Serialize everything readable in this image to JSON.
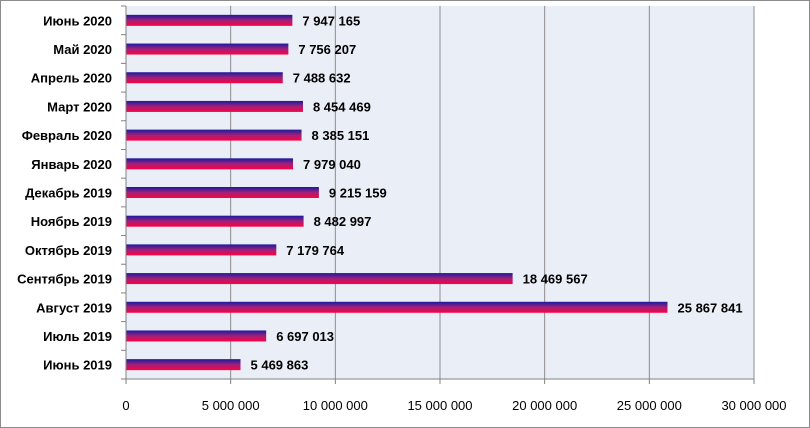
{
  "chart_data": {
    "type": "bar",
    "orientation": "horizontal",
    "categories": [
      "Июнь 2020",
      "Май 2020",
      "Апрель 2020",
      "Март 2020",
      "Февраль 2020",
      "Январь 2020",
      "Декабрь 2019",
      "Ноябрь 2019",
      "Октябрь 2019",
      "Сентябрь 2019",
      "Август 2019",
      "Июль 2019",
      "Июнь 2019"
    ],
    "values": [
      7947165,
      7756207,
      7488632,
      8454469,
      8385151,
      7979040,
      9215159,
      8482997,
      7179764,
      18469567,
      25867841,
      6697013,
      5469863
    ],
    "value_labels": [
      "7 947 165",
      "7 756 207",
      "7 488 632",
      "8 454 469",
      "8 385 151",
      "7 979 040",
      "9 215 159",
      "8 482 997",
      "7 179 764",
      "18 469 567",
      "25 867 841",
      "6 697 013",
      "5 469 863"
    ],
    "xlim": [
      0,
      30000000
    ],
    "x_ticks": [
      0,
      5000000,
      10000000,
      15000000,
      20000000,
      25000000,
      30000000
    ],
    "x_tick_labels": [
      "0",
      "5 000 000",
      "10 000 000",
      "15 000 000",
      "20 000 000",
      "25 000 000",
      "30 000 000"
    ],
    "grid": true,
    "title": "",
    "xlabel": "",
    "ylabel": "",
    "colors": {
      "bar_top": "#1a1aa0",
      "bar_bottom": "#ff0040",
      "plot_background": "#eaeff7",
      "gridline": "#8c8c8c",
      "axis": "#808080",
      "border": "#8c8c8c"
    }
  }
}
